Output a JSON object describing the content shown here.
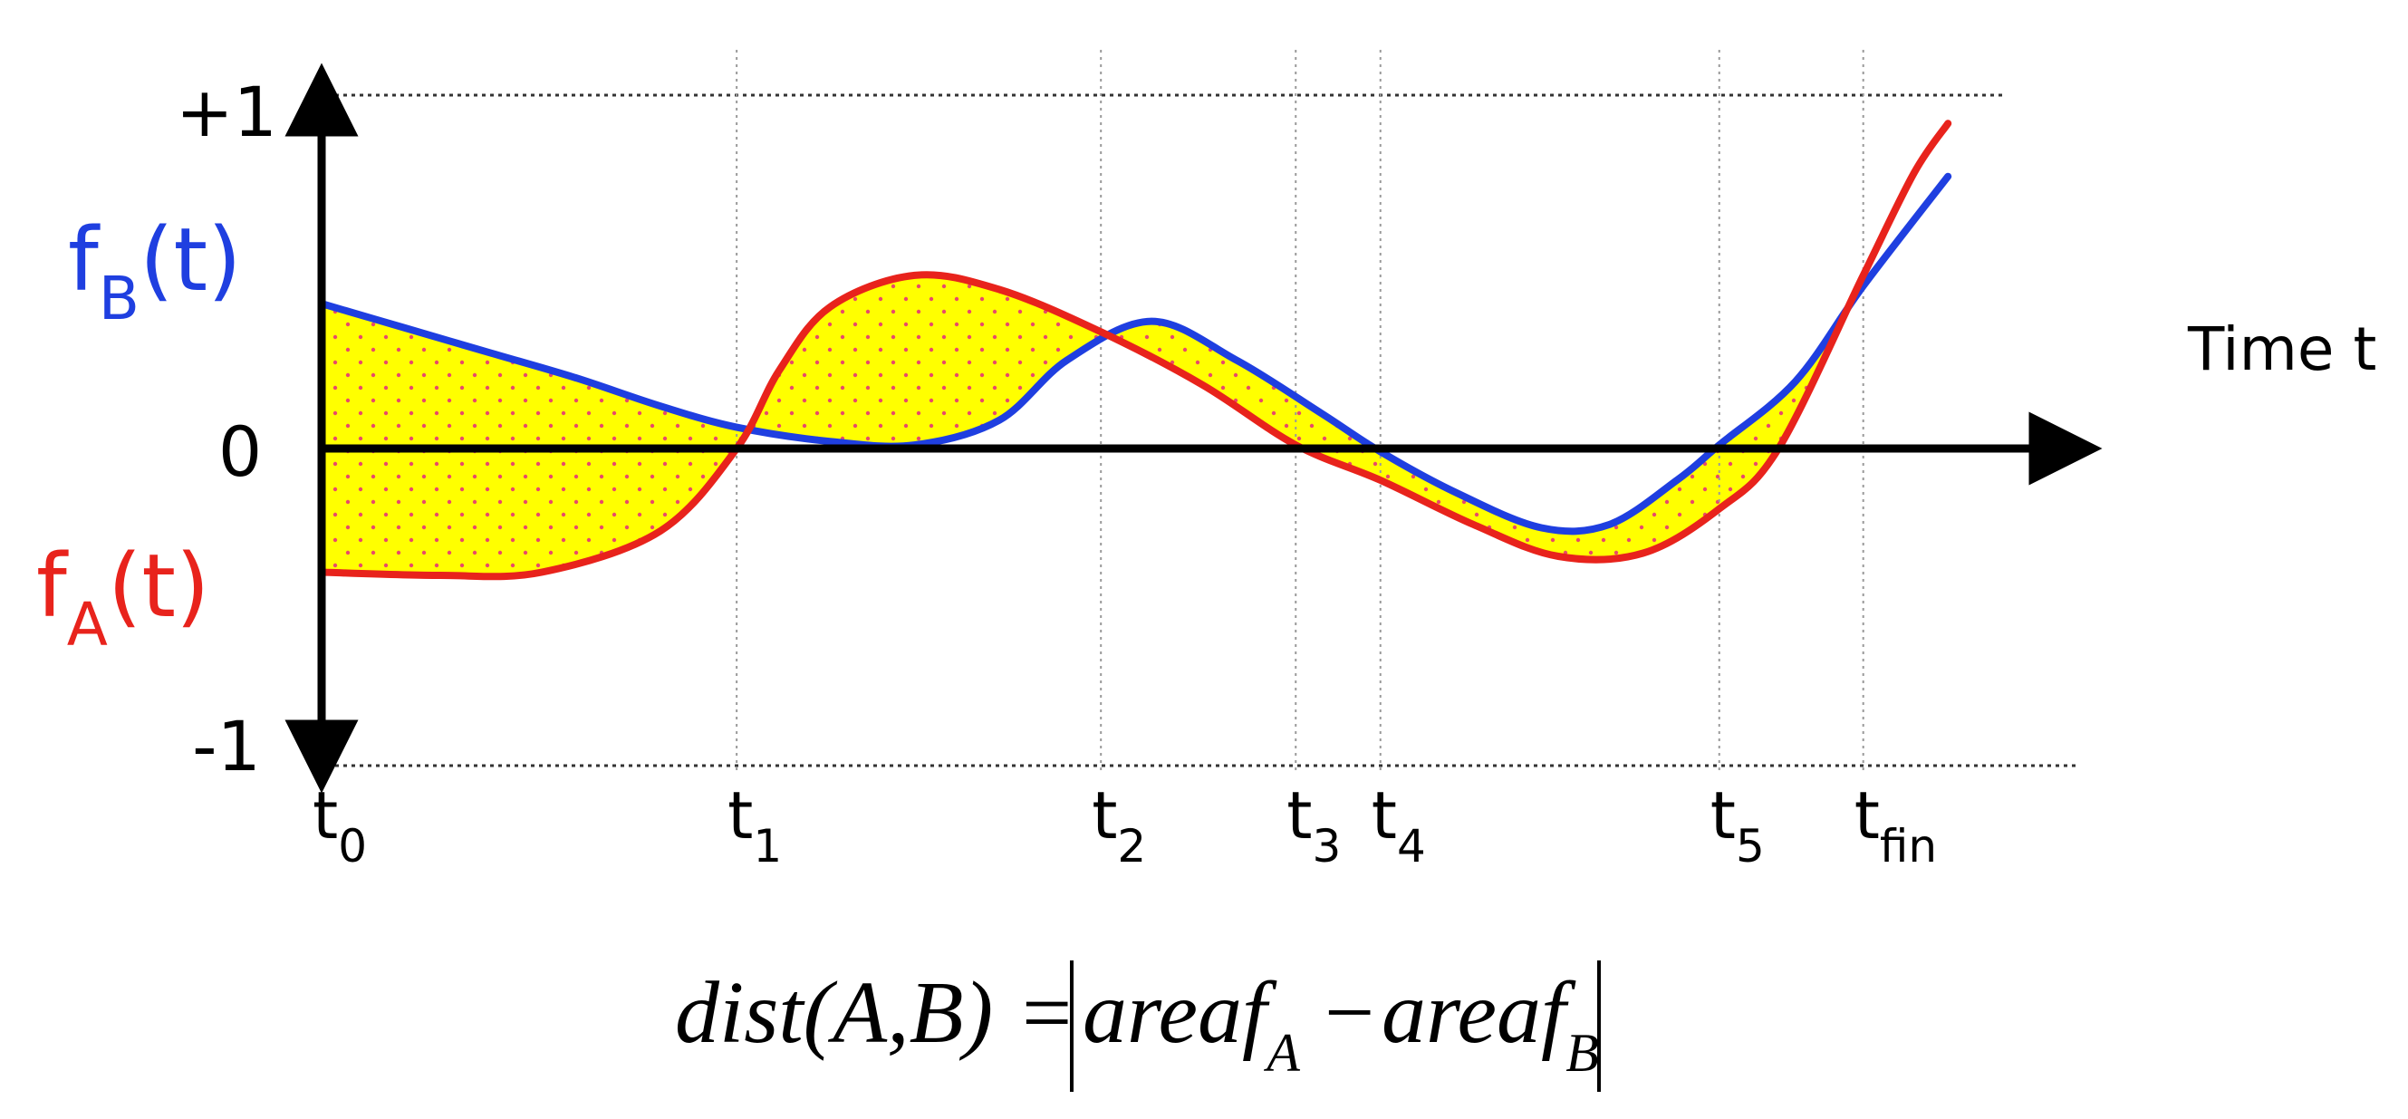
{
  "chart_data": {
    "type": "line",
    "title": "",
    "xlabel": "Time t",
    "ylabel": "",
    "ylim": [
      -1,
      1
    ],
    "y_ticks": [
      {
        "value": 1,
        "label": "+1"
      },
      {
        "value": 0,
        "label": "0"
      },
      {
        "value": -1,
        "label": "-1"
      }
    ],
    "time_markers": [
      {
        "id": "t0",
        "t": 0.0,
        "base": "t",
        "sub": "0"
      },
      {
        "id": "t1",
        "t": 2.45,
        "base": "t",
        "sub": "1"
      },
      {
        "id": "t2",
        "t": 4.6,
        "base": "t",
        "sub": "2"
      },
      {
        "id": "t3",
        "t": 5.75,
        "base": "t",
        "sub": "3"
      },
      {
        "id": "t4",
        "t": 6.25,
        "base": "t",
        "sub": "4"
      },
      {
        "id": "t5",
        "t": 8.25,
        "base": "t",
        "sub": "5"
      },
      {
        "id": "tfin",
        "t": 9.1,
        "base": "t",
        "sub": "fin"
      }
    ],
    "x_range": [
      0,
      10
    ],
    "series": [
      {
        "name": "fB(t)",
        "label_base": "f",
        "label_sub": "B",
        "label_tail": "(t)",
        "color": "#1f3fe0",
        "points": [
          [
            0.0,
            0.41
          ],
          [
            0.5,
            0.34
          ],
          [
            1.0,
            0.27
          ],
          [
            1.5,
            0.2
          ],
          [
            2.0,
            0.12
          ],
          [
            2.45,
            0.06
          ],
          [
            3.0,
            0.02
          ],
          [
            3.5,
            0.01
          ],
          [
            4.0,
            0.08
          ],
          [
            4.4,
            0.25
          ],
          [
            4.9,
            0.36
          ],
          [
            5.4,
            0.25
          ],
          [
            5.9,
            0.1
          ],
          [
            6.25,
            -0.01
          ],
          [
            6.7,
            -0.14
          ],
          [
            7.2,
            -0.25
          ],
          [
            7.6,
            -0.24
          ],
          [
            8.0,
            -0.1
          ],
          [
            8.25,
            0.01
          ],
          [
            8.7,
            0.19
          ],
          [
            9.1,
            0.46
          ],
          [
            9.6,
            0.77
          ]
        ]
      },
      {
        "name": "fA(t)",
        "label_base": "f",
        "label_sub": "A",
        "label_tail": "(t)",
        "color": "#e8231c",
        "points": [
          [
            0.0,
            -0.39
          ],
          [
            0.7,
            -0.4
          ],
          [
            1.3,
            -0.39
          ],
          [
            2.0,
            -0.26
          ],
          [
            2.45,
            0.0
          ],
          [
            2.7,
            0.22
          ],
          [
            3.0,
            0.4
          ],
          [
            3.5,
            0.49
          ],
          [
            4.0,
            0.45
          ],
          [
            4.6,
            0.33
          ],
          [
            5.2,
            0.18
          ],
          [
            5.75,
            0.01
          ],
          [
            6.25,
            -0.1
          ],
          [
            6.8,
            -0.24
          ],
          [
            7.3,
            -0.34
          ],
          [
            7.8,
            -0.33
          ],
          [
            8.25,
            -0.19
          ],
          [
            8.6,
            0.0
          ],
          [
            9.1,
            0.49
          ],
          [
            9.4,
            0.78
          ],
          [
            9.6,
            0.92
          ]
        ]
      }
    ],
    "shaded_region": {
      "fill": "#ffff00",
      "dot_color": "#e84a6a",
      "meaning": "area between fA(t) and fB(t)"
    },
    "formula": {
      "lhs": "dist(A,B)",
      "equals": "=",
      "term1_base": "areaf",
      "term1_sub": "A",
      "minus": "−",
      "term2_base": "areaf",
      "term2_sub": "B"
    }
  }
}
